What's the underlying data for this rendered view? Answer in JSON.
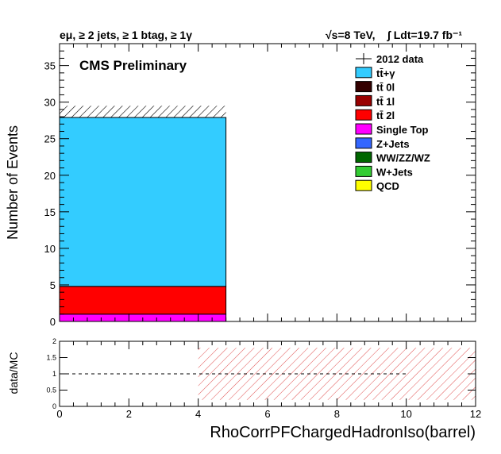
{
  "chart_data": [
    {
      "type": "bar",
      "stacked": true,
      "header_left": "eμ, ≥ 2 jets, ≥ 1 btag, ≥ 1γ",
      "header_right_energy": "√s=8 TeV,",
      "header_right_lumi": "∫ Ldt=19.7 fb⁻¹",
      "banner": "CMS Preliminary",
      "ylabel": "Number of Events",
      "xlim": [
        0,
        12
      ],
      "ylim": [
        0,
        38
      ],
      "yticks": [
        "0",
        "5",
        "10",
        "15",
        "20",
        "25",
        "30",
        "35"
      ],
      "bins": [
        [
          0,
          4.8
        ]
      ],
      "legend": [
        {
          "label": "2012 data",
          "color": "#000000",
          "style": "marker"
        },
        {
          "label": "tt̄+γ",
          "color": "#33ccff",
          "style": "box"
        },
        {
          "label": "tt̄ 0l",
          "color": "#330000",
          "style": "box"
        },
        {
          "label": "tt̄ 1l",
          "color": "#990000",
          "style": "box"
        },
        {
          "label": "tt̄ 2l",
          "color": "#ff0000",
          "style": "box"
        },
        {
          "label": "Single Top",
          "color": "#ff00ff",
          "style": "box"
        },
        {
          "label": "Z+Jets",
          "color": "#3366ff",
          "style": "box"
        },
        {
          "label": "WW/ZZ/WZ",
          "color": "#006600",
          "style": "box"
        },
        {
          "label": "W+Jets",
          "color": "#33cc33",
          "style": "box"
        },
        {
          "label": "QCD",
          "color": "#ffff00",
          "style": "box"
        }
      ],
      "series": [
        {
          "name": "Single Top",
          "color": "#ff00ff",
          "values": [
            1.0
          ]
        },
        {
          "name": "tt̄ 2l",
          "color": "#ff0000",
          "values": [
            3.8
          ]
        },
        {
          "name": "tt̄+γ",
          "color": "#33ccff",
          "values": [
            23.1
          ]
        }
      ],
      "uncertainty": {
        "bins": [
          [
            0,
            4.8
          ]
        ],
        "low": [
          27.9
        ],
        "high": [
          29.5
        ]
      },
      "data": []
    },
    {
      "type": "line",
      "ylabel": "data/MC",
      "xlabel": "RhoCorrPFChargedHadronIso(barrel)",
      "xlim": [
        0,
        12
      ],
      "ylim": [
        0,
        2
      ],
      "xticks": [
        "0",
        "2",
        "4",
        "6",
        "8",
        "10",
        "12"
      ],
      "yticks": [
        "0",
        "0.5",
        "1",
        "1.5",
        "2"
      ],
      "reference_line": 1,
      "uncertainty_band": {
        "x_from": 4,
        "x_to": 12,
        "low": 0.2,
        "high": 1.8
      }
    }
  ]
}
